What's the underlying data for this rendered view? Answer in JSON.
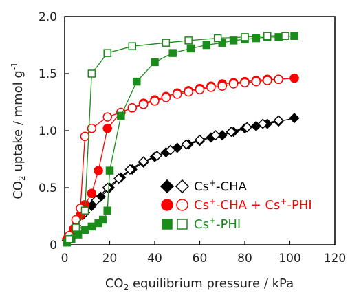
{
  "chart_data": {
    "type": "scatter",
    "title": "",
    "xlabel": {
      "pre": "CO",
      "sub": "2",
      "post": " equilibrium pressure / kPa"
    },
    "ylabel": {
      "pre": "CO",
      "sub": "2",
      "mid": " uptake / mmol g",
      "sup": "-1"
    },
    "xlim": [
      0,
      120
    ],
    "ylim": [
      0,
      2.0
    ],
    "xticks": [
      "0",
      "20",
      "40",
      "60",
      "80",
      "100",
      "120"
    ],
    "yticks": [
      "0",
      "0.5",
      "1.0",
      "1.5",
      "2.0"
    ],
    "grid": false,
    "legend_position": "bottom-right",
    "series": [
      {
        "label": {
          "a": "Cs",
          "sup": "+",
          "b": "-CHA",
          "c": "",
          "sup2": "",
          "d": ""
        },
        "color": "#000000",
        "marker": "diamond",
        "filled": {
          "x": [
            1,
            3,
            5,
            8,
            12,
            16,
            20,
            25,
            30,
            35,
            40,
            45,
            50,
            55,
            60,
            65,
            70,
            75,
            80,
            85,
            90,
            95,
            102
          ],
          "y": [
            0.04,
            0.1,
            0.17,
            0.26,
            0.34,
            0.42,
            0.5,
            0.59,
            0.66,
            0.72,
            0.77,
            0.81,
            0.85,
            0.88,
            0.91,
            0.94,
            0.96,
            0.99,
            1.02,
            1.04,
            1.06,
            1.08,
            1.11
          ]
        },
        "open": {
          "x": [
            2,
            5,
            9,
            14,
            19,
            24,
            29,
            35,
            41,
            47,
            54,
            60,
            67,
            74,
            81,
            88,
            95
          ],
          "y": [
            0.06,
            0.15,
            0.28,
            0.39,
            0.5,
            0.58,
            0.66,
            0.73,
            0.78,
            0.83,
            0.88,
            0.92,
            0.96,
            0.99,
            1.03,
            1.06,
            1.09
          ]
        }
      },
      {
        "label": {
          "a": "Cs",
          "sup": "+",
          "b": "-CHA + Cs",
          "c": "",
          "sup2": "+",
          "d": "-PHI"
        },
        "color": "#ff0000",
        "marker": "circle",
        "filled": {
          "x": [
            1,
            4,
            7,
            9,
            12,
            15,
            19,
            25,
            30,
            35,
            40,
            45,
            50,
            55,
            60,
            65,
            70,
            75,
            80,
            85,
            90,
            95,
            102
          ],
          "y": [
            0.05,
            0.14,
            0.26,
            0.35,
            0.45,
            0.65,
            1.02,
            1.16,
            1.2,
            1.24,
            1.27,
            1.3,
            1.33,
            1.35,
            1.37,
            1.39,
            1.41,
            1.42,
            1.43,
            1.44,
            1.45,
            1.45,
            1.46
          ]
        },
        "open": {
          "x": [
            2,
            5,
            7,
            9,
            12,
            19,
            25,
            30,
            35,
            40,
            45,
            50,
            55,
            60,
            65,
            70,
            75,
            80,
            85,
            90,
            95
          ],
          "y": [
            0.08,
            0.22,
            0.32,
            0.95,
            1.02,
            1.12,
            1.16,
            1.2,
            1.23,
            1.26,
            1.29,
            1.32,
            1.34,
            1.36,
            1.38,
            1.39,
            1.41,
            1.42,
            1.43,
            1.44,
            1.45
          ]
        }
      },
      {
        "label": {
          "a": "Cs",
          "sup": "+",
          "b": "-PHI",
          "c": "",
          "sup2": "",
          "d": ""
        },
        "color": "#1a8c1a",
        "marker": "square",
        "filled": {
          "x": [
            1,
            3,
            6,
            9,
            12,
            15,
            17,
            19,
            20,
            25,
            32,
            40,
            48,
            56,
            63,
            70,
            75,
            80,
            85,
            90,
            95,
            102
          ],
          "y": [
            0.02,
            0.05,
            0.09,
            0.13,
            0.16,
            0.19,
            0.22,
            0.3,
            0.65,
            1.13,
            1.43,
            1.6,
            1.68,
            1.72,
            1.75,
            1.77,
            1.79,
            1.8,
            1.81,
            1.82,
            1.82,
            1.83
          ]
        },
        "open": {
          "x": [
            2,
            5,
            9,
            12,
            19,
            30,
            45,
            55,
            68,
            80,
            90,
            98
          ],
          "y": [
            0.05,
            0.15,
            0.3,
            1.5,
            1.68,
            1.74,
            1.77,
            1.79,
            1.81,
            1.82,
            1.83,
            1.83
          ]
        }
      }
    ]
  }
}
